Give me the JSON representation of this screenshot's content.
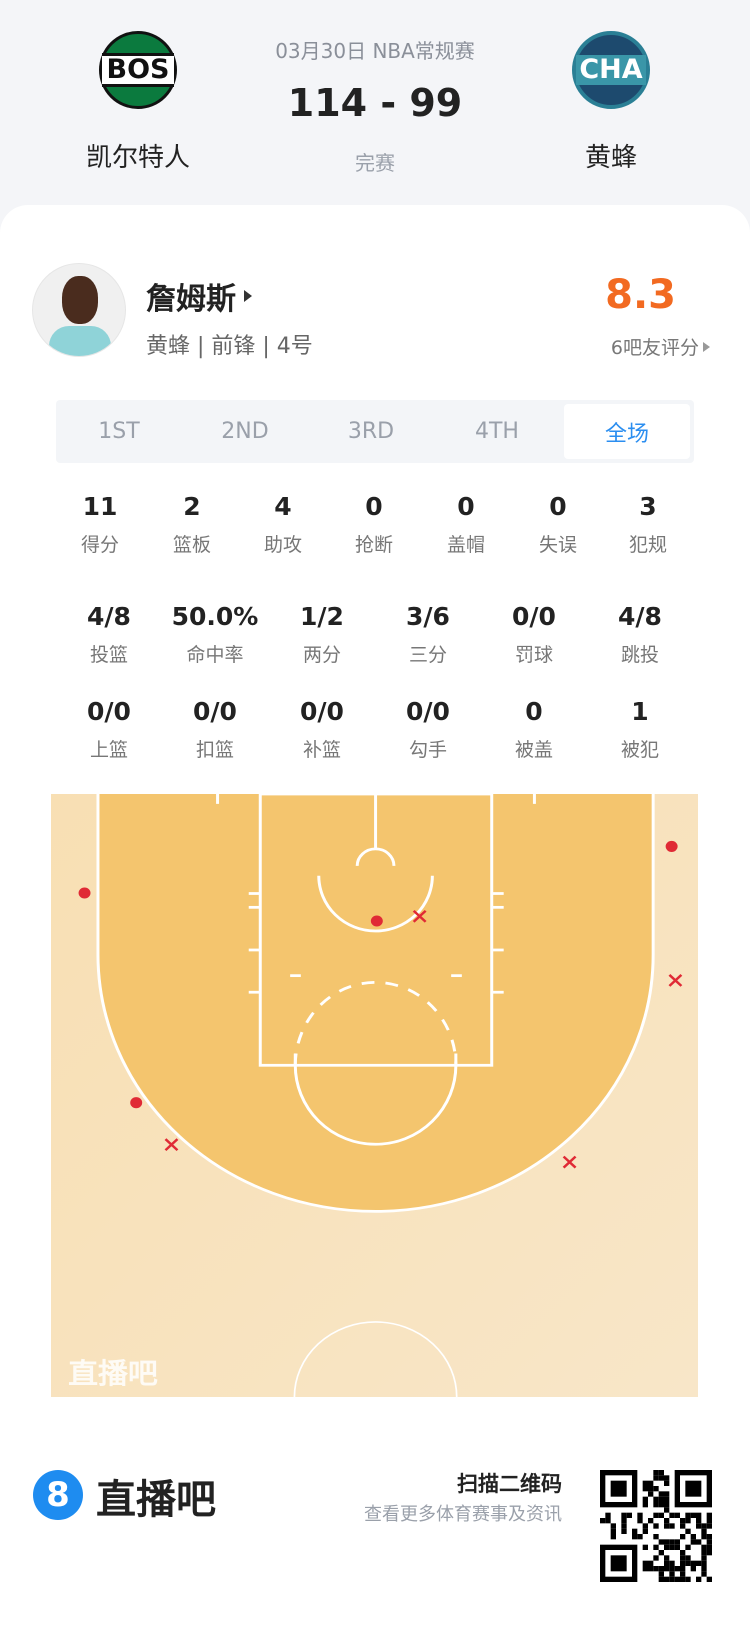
{
  "match": {
    "home": {
      "abbr": "BOS",
      "name": "凯尔特人",
      "color": "#0b7a3e"
    },
    "away": {
      "abbr": "CHA",
      "name": "黄蜂",
      "color": "#1d4a6e"
    },
    "date_league": "03月30日 NBA常规赛",
    "score": "114 - 99",
    "status": "完赛"
  },
  "player": {
    "name": "詹姆斯",
    "info": "黄蜂 | 前锋 | 4号",
    "rating": "8.3",
    "rating_label": "6吧友评分",
    "rating_color": "#f26a21"
  },
  "tabs": [
    {
      "label": "1ST",
      "active": false
    },
    {
      "label": "2ND",
      "active": false
    },
    {
      "label": "3RD",
      "active": false
    },
    {
      "label": "4TH",
      "active": false
    },
    {
      "label": "全场",
      "active": true
    }
  ],
  "stats_row1": [
    {
      "value": "11",
      "label": "得分"
    },
    {
      "value": "2",
      "label": "篮板"
    },
    {
      "value": "4",
      "label": "助攻"
    },
    {
      "value": "0",
      "label": "抢断"
    },
    {
      "value": "0",
      "label": "盖帽"
    },
    {
      "value": "0",
      "label": "失误"
    },
    {
      "value": "3",
      "label": "犯规"
    }
  ],
  "stats_row2": [
    {
      "value": "4/8",
      "label": "投篮"
    },
    {
      "value": "50.0%",
      "label": "命中率"
    },
    {
      "value": "1/2",
      "label": "两分"
    },
    {
      "value": "3/6",
      "label": "三分"
    },
    {
      "value": "0/0",
      "label": "罚球"
    },
    {
      "value": "4/8",
      "label": "跳投"
    }
  ],
  "stats_row3": [
    {
      "value": "0/0",
      "label": "上篮"
    },
    {
      "value": "0/0",
      "label": "扣篮"
    },
    {
      "value": "0/0",
      "label": "补篮"
    },
    {
      "value": "0/0",
      "label": "勾手"
    },
    {
      "value": "0",
      "label": "被盖"
    },
    {
      "value": "1",
      "label": "被犯"
    }
  ],
  "shot_chart": {
    "watermark": "直播吧",
    "made_color": "#e02a35",
    "shots_ft": [
      {
        "x": -23.1,
        "y": 8.5,
        "made": true
      },
      {
        "x": -19.0,
        "y": 26.5,
        "made": true
      },
      {
        "x": 0.1,
        "y": 10.9,
        "made": true
      },
      {
        "x": 23.5,
        "y": 4.5,
        "made": true
      },
      {
        "x": -16.2,
        "y": 30.1,
        "made": false
      },
      {
        "x": 3.5,
        "y": 10.5,
        "made": false
      },
      {
        "x": 23.8,
        "y": 16.0,
        "made": false
      },
      {
        "x": 15.4,
        "y": 31.6,
        "made": false
      }
    ]
  },
  "footer": {
    "brand": "直播吧",
    "brand_icon": "8",
    "scan_title": "扫描二维码",
    "scan_sub": "查看更多体育赛事及资讯"
  }
}
